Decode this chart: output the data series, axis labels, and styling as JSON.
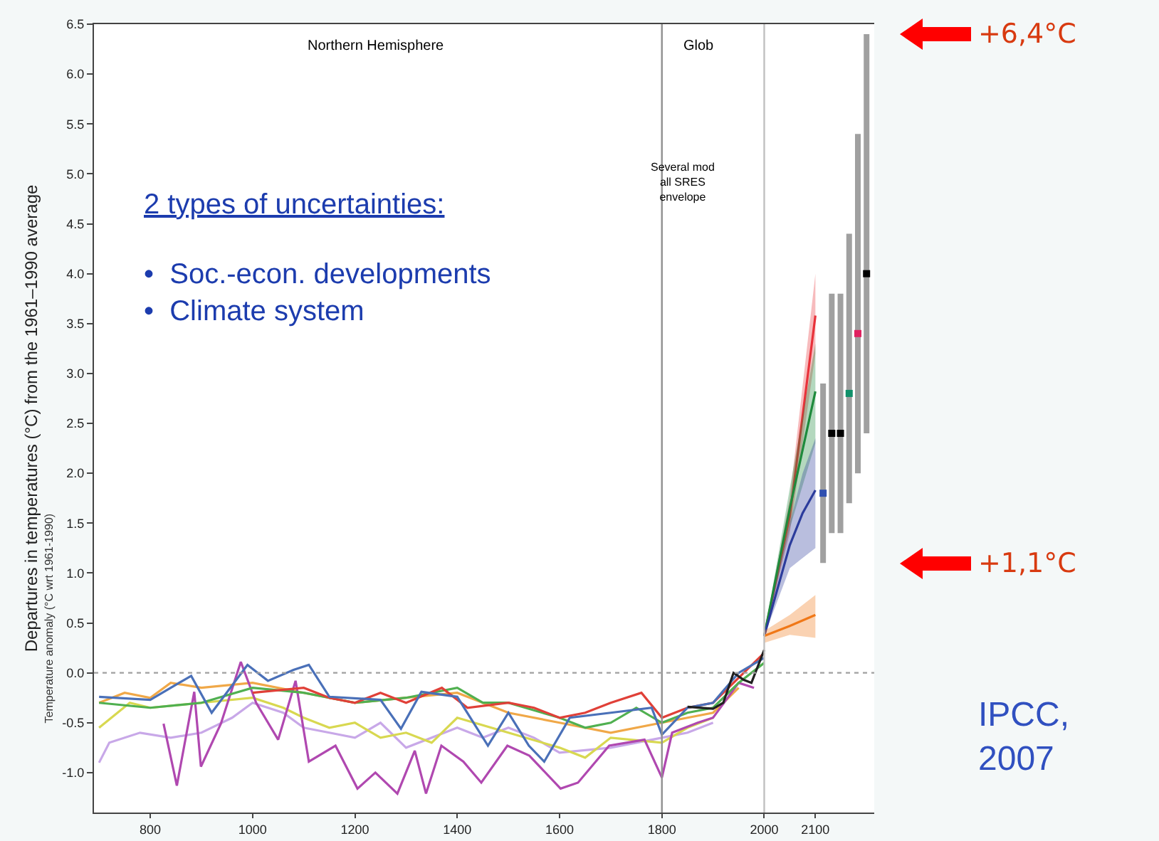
{
  "chart_data": {
    "type": "line",
    "ylabel": "Departures in temperatures (°C) from the 1961–1990 average",
    "xlim": [
      690,
      2215
    ],
    "xticks": [
      800,
      1000,
      1200,
      1400,
      1600,
      1800,
      2000,
      2100
    ],
    "ylim": [
      -1.4,
      6.5
    ],
    "yticks": [
      {
        "value": -1,
        "label": "-1.0"
      },
      {
        "value": -0.5,
        "label": "-0.5"
      },
      {
        "value": 0,
        "label": "0.0"
      },
      {
        "value": 0.5,
        "label": "0.5"
      },
      {
        "value": 1,
        "label": "1.0"
      },
      1.5,
      {
        "value": 2,
        "label": "2.0"
      },
      2.5,
      {
        "value": 3,
        "label": "3.0"
      },
      3.5,
      {
        "value": 4,
        "label": "4.0"
      },
      4.5,
      {
        "value": 5,
        "label": "5.0"
      },
      5.5,
      {
        "value": 6,
        "label": "6.0"
      },
      6.5
    ],
    "grid": false,
    "series": [
      {
        "color": "#c8a8e8",
        "x": [
          700,
          720,
          780,
          840,
          900,
          960,
          1000,
          1060,
          1100,
          1150,
          1200,
          1250,
          1300,
          1400,
          1450,
          1500,
          1550,
          1600,
          1700,
          1800,
          1850,
          1900
        ],
        "values": [
          -0.9,
          -0.7,
          -0.6,
          -0.65,
          -0.6,
          -0.45,
          -0.3,
          -0.4,
          -0.55,
          -0.6,
          -0.65,
          -0.5,
          -0.75,
          -0.55,
          -0.65,
          -0.55,
          -0.65,
          -0.8,
          -0.75,
          -0.65,
          -0.6,
          -0.5
        ]
      },
      {
        "color": "#d8d850",
        "x": [
          700,
          760,
          800,
          900,
          1000,
          1060,
          1100,
          1150,
          1200,
          1250,
          1300,
          1350,
          1400,
          1500,
          1600,
          1650,
          1700,
          1800,
          1850,
          1900
        ],
        "values": [
          -0.55,
          -0.3,
          -0.35,
          -0.3,
          -0.25,
          -0.35,
          -0.45,
          -0.55,
          -0.5,
          -0.65,
          -0.6,
          -0.7,
          -0.45,
          -0.6,
          -0.75,
          -0.85,
          -0.65,
          -0.7,
          -0.55,
          -0.45
        ]
      },
      {
        "color": "#f0a848",
        "x": [
          700,
          750,
          800,
          840,
          900,
          1000,
          1100,
          1200,
          1300,
          1400,
          1500,
          1600,
          1700,
          1800,
          1850,
          1900,
          1950
        ],
        "values": [
          -0.3,
          -0.2,
          -0.25,
          -0.1,
          -0.15,
          -0.1,
          -0.2,
          -0.3,
          -0.25,
          -0.2,
          -0.4,
          -0.5,
          -0.6,
          -0.5,
          -0.45,
          -0.4,
          -0.15
        ]
      },
      {
        "color": "#b048b0",
        "x": [
          826,
          852,
          886,
          899,
          938,
          977,
          1007,
          1050,
          1084,
          1110,
          1162,
          1205,
          1240,
          1283,
          1317,
          1339,
          1369,
          1412,
          1447,
          1498,
          1541,
          1602,
          1636,
          1697,
          1766,
          1800,
          1820,
          1870,
          1900,
          1950,
          1980
        ],
        "values": [
          -0.51,
          -1.13,
          -0.19,
          -0.94,
          -0.51,
          0.11,
          -0.3,
          -0.67,
          -0.08,
          -0.89,
          -0.73,
          -1.16,
          -1.0,
          -1.21,
          -0.78,
          -1.21,
          -0.73,
          -0.89,
          -1.1,
          -0.73,
          -0.83,
          -1.16,
          -1.1,
          -0.73,
          -0.67,
          -1.05,
          -0.6,
          -0.5,
          -0.45,
          -0.1,
          -0.15
        ]
      },
      {
        "color": "#50b050",
        "x": [
          700,
          800,
          900,
          1000,
          1100,
          1200,
          1300,
          1400,
          1450,
          1500,
          1600,
          1650,
          1700,
          1750,
          1800,
          1850,
          1900,
          1950,
          2000
        ],
        "values": [
          -0.3,
          -0.35,
          -0.3,
          -0.15,
          -0.2,
          -0.3,
          -0.25,
          -0.15,
          -0.3,
          -0.3,
          -0.45,
          -0.55,
          -0.5,
          -0.35,
          -0.5,
          -0.4,
          -0.35,
          -0.1,
          0.1
        ]
      },
      {
        "color": "#e04038",
        "x": [
          1000,
          1100,
          1150,
          1200,
          1250,
          1300,
          1370,
          1420,
          1500,
          1550,
          1600,
          1650,
          1700,
          1760,
          1800,
          1850,
          1900,
          1950,
          2000
        ],
        "values": [
          -0.2,
          -0.15,
          -0.25,
          -0.3,
          -0.2,
          -0.3,
          -0.15,
          -0.35,
          -0.3,
          -0.35,
          -0.45,
          -0.4,
          -0.3,
          -0.2,
          -0.45,
          -0.35,
          -0.3,
          -0.05,
          0.2
        ]
      },
      {
        "color": "#4a70b8",
        "x": [
          700,
          800,
          880,
          920,
          990,
          1030,
          1080,
          1110,
          1150,
          1250,
          1290,
          1330,
          1400,
          1460,
          1500,
          1540,
          1570,
          1620,
          1700,
          1780,
          1800,
          1850,
          1900,
          1950,
          2000
        ],
        "values": [
          -0.24,
          -0.27,
          -0.03,
          -0.4,
          0.08,
          -0.08,
          0.03,
          0.08,
          -0.24,
          -0.27,
          -0.56,
          -0.19,
          -0.24,
          -0.73,
          -0.4,
          -0.73,
          -0.89,
          -0.45,
          -0.4,
          -0.35,
          -0.62,
          -0.35,
          -0.3,
          0.0,
          0.15
        ]
      },
      {
        "color": "#202020",
        "x": [
          1850,
          1900,
          1920,
          1940,
          1960,
          1975,
          2000
        ],
        "values": [
          -0.34,
          -0.36,
          -0.3,
          0.0,
          -0.07,
          -0.1,
          0.23
        ]
      },
      {
        "color": "#e8323a",
        "x": [
          2000,
          2050,
          2100
        ],
        "values": [
          0.37,
          1.57,
          3.58
        ],
        "lower": [
          0.37,
          1.4,
          3.2
        ],
        "upper": [
          0.37,
          1.75,
          4.0
        ]
      },
      {
        "color": "#1e8a3c",
        "x": [
          2000,
          2050,
          2100
        ],
        "values": [
          0.37,
          1.65,
          2.82
        ],
        "lower": [
          0.37,
          1.45,
          2.3
        ],
        "upper": [
          0.37,
          1.85,
          3.3
        ]
      },
      {
        "color": "#2c3c9c",
        "x": [
          2000,
          2050,
          2075,
          2100
        ],
        "values": [
          0.37,
          1.28,
          1.6,
          1.83
        ],
        "lower": [
          0.37,
          1.05,
          1.15,
          1.25
        ],
        "upper": [
          0.37,
          1.5,
          2.0,
          2.35
        ]
      },
      {
        "color": "#f07818",
        "x": [
          2000,
          2050,
          2100
        ],
        "values": [
          0.37,
          0.47,
          0.58
        ],
        "lower": [
          0.3,
          0.38,
          0.35
        ],
        "upper": [
          0.42,
          0.58,
          0.78
        ]
      },
      {
        "type": "scatter",
        "marker": "square",
        "color": "#a0a0a0",
        "x": [
          2115,
          2132,
          2149,
          2166,
          2183,
          2200
        ],
        "values": [
          1.8,
          2.4,
          2.4,
          2.8,
          3.4,
          4.0
        ],
        "colors": [
          "#3050b0",
          "#000000",
          "#000000",
          "#10906a",
          "#e02060",
          "#000000"
        ],
        "errors": [
          [
            1.1,
            2.9
          ],
          [
            1.4,
            3.8
          ],
          [
            1.4,
            3.8
          ],
          [
            1.7,
            4.4
          ],
          [
            2.0,
            5.4
          ],
          [
            2.4,
            6.4
          ]
        ]
      }
    ],
    "ref_lines": [
      {
        "axis": "x",
        "value": 1800,
        "color": "#909090",
        "line_style": "solid"
      },
      {
        "axis": "x",
        "value": 2000,
        "color": "#c0c0c0",
        "line_style": "solid"
      },
      {
        "axis": "y",
        "value": 0,
        "color": "#a0a0a0",
        "line_style": "dotted"
      }
    ],
    "annotations": [
      "Northern Hemisphere",
      "Glob",
      "Several mod\nall SRES\nenvelope",
      "2 types of uncertainties:",
      "•  Soc.-econ. developments\n•  Climate system",
      "Temperature anomaly (°C wrt 1961-1990)",
      "IPCC,\n2007",
      "+6,4°C",
      "+1,1°C"
    ]
  }
}
